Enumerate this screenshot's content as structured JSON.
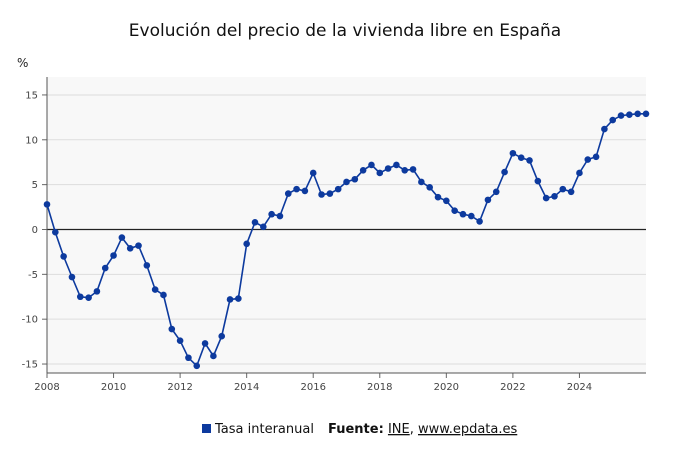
{
  "chart_data": {
    "type": "line",
    "title": "Evolución del precio de la vivienda libre en España",
    "ylabel": "%",
    "xlabel": "",
    "xlim": [
      2008,
      2026
    ],
    "ylim": [
      -16,
      17
    ],
    "yticks": [
      -15,
      -10,
      -5,
      0,
      5,
      10,
      15
    ],
    "xticks": [
      2008,
      2010,
      2012,
      2014,
      2016,
      2018,
      2020,
      2022,
      2024
    ],
    "grid": true,
    "legend_position": "bottom",
    "colors": {
      "series": "#0d3a9e",
      "zero_line": "#222222",
      "plot_bg": "#f8f8f8",
      "grid": "#dddddd"
    },
    "series": [
      {
        "name": "Tasa interanual",
        "x": [
          2008.0,
          2008.25,
          2008.5,
          2008.75,
          2009.0,
          2009.25,
          2009.5,
          2009.75,
          2010.0,
          2010.25,
          2010.5,
          2010.75,
          2011.0,
          2011.25,
          2011.5,
          2011.75,
          2012.0,
          2012.25,
          2012.5,
          2012.75,
          2013.0,
          2013.25,
          2013.5,
          2013.75,
          2014.0,
          2014.25,
          2014.5,
          2014.75,
          2015.0,
          2015.25,
          2015.5,
          2015.75,
          2016.0,
          2016.25,
          2016.5,
          2016.75,
          2017.0,
          2017.25,
          2017.5,
          2017.75,
          2018.0,
          2018.25,
          2018.5,
          2018.75,
          2019.0,
          2019.25,
          2019.5,
          2019.75,
          2020.0,
          2020.25,
          2020.5,
          2020.75,
          2021.0,
          2021.25,
          2021.5,
          2021.75,
          2022.0,
          2022.25,
          2022.5,
          2022.75,
          2023.0,
          2023.25,
          2023.5,
          2023.75,
          2024.0,
          2024.25,
          2024.5,
          2024.75,
          2025.0,
          2025.25,
          2025.5,
          2025.75,
          2026.0
        ],
        "values": [
          2.8,
          -0.3,
          -3.0,
          -5.3,
          -7.5,
          -7.6,
          -6.9,
          -4.3,
          -2.9,
          -0.9,
          -2.1,
          -1.8,
          -4.0,
          -6.7,
          -7.3,
          -11.1,
          -12.4,
          -14.3,
          -15.2,
          -12.7,
          -14.1,
          -11.9,
          -7.8,
          -7.7,
          -1.6,
          0.8,
          0.3,
          1.7,
          1.5,
          4.0,
          4.5,
          4.3,
          6.3,
          3.9,
          4.0,
          4.5,
          5.3,
          5.6,
          6.6,
          7.2,
          6.3,
          6.8,
          7.2,
          6.6,
          6.7,
          5.3,
          4.7,
          3.6,
          3.2,
          2.1,
          1.7,
          1.5,
          0.9,
          3.3,
          4.2,
          6.4,
          8.5,
          8.0,
          7.7,
          5.4,
          3.5,
          3.7,
          4.5,
          4.2,
          6.3,
          7.8,
          8.1,
          11.2,
          12.2,
          12.7,
          12.8,
          12.9,
          12.9
        ]
      }
    ],
    "source": {
      "label": "Fuente:",
      "ine": "INE",
      "separator": ",",
      "site": "www.epdata.es"
    }
  }
}
